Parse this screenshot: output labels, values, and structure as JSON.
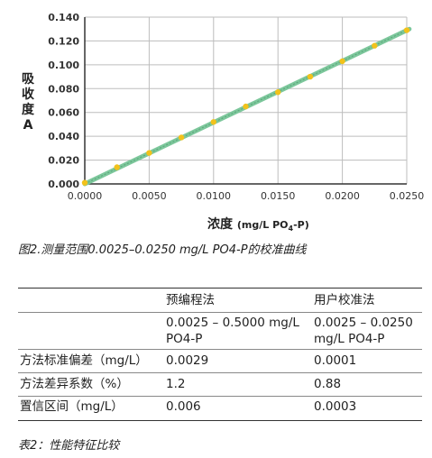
{
  "chart_data": {
    "type": "scatter",
    "title": "",
    "xlabel_main": "浓度",
    "xlabel_unit_prefix": "(mg/L PO",
    "xlabel_unit_sub": "4",
    "xlabel_unit_suffix": "-P)",
    "ylabel": "吸收度A",
    "xlim": [
      0,
      0.025
    ],
    "ylim": [
      0,
      0.14
    ],
    "x_ticks": [
      "0.0000",
      "0.0050",
      "0.0100",
      "0.0150",
      "0.0200",
      "0.0250"
    ],
    "y_ticks": [
      "0.000",
      "0.020",
      "0.040",
      "0.060",
      "0.080",
      "0.100",
      "0.120",
      "0.140"
    ],
    "x_tick_values": [
      0,
      0.005,
      0.01,
      0.015,
      0.02,
      0.025
    ],
    "y_tick_values": [
      0,
      0.02,
      0.04,
      0.06,
      0.08,
      0.1,
      0.12,
      0.14
    ],
    "grid": true,
    "series": [
      {
        "x": [
          0.0,
          0.0025,
          0.005,
          0.0075,
          0.01,
          0.0125,
          0.015,
          0.0175,
          0.02,
          0.0225,
          0.025
        ],
        "y": [
          0.001,
          0.014,
          0.026,
          0.039,
          0.052,
          0.065,
          0.077,
          0.09,
          0.103,
          0.116,
          0.129
        ],
        "color": "#f2c21b"
      }
    ],
    "fit_line": {
      "x": [
        0.0,
        0.0252
      ],
      "y": [
        0.0,
        0.13
      ],
      "color": "#7cc79b"
    },
    "colors": {
      "axis": "#333333",
      "grid": "#bdbdbd"
    }
  },
  "figure_caption": "图2.测量范围0.0025–0.0250 mg/L PO4-P的校准曲线",
  "table": {
    "headers": [
      "",
      "预编程法",
      "用户校准法"
    ],
    "rows": [
      [
        "",
        "0.0025 – 0.5000 mg/L PO4-P",
        "0.0025 – 0.0250 mg/L PO4-P"
      ],
      [
        "方法标准偏差（mg/L）",
        "0.0029",
        "0.0001"
      ],
      [
        "方法差异系数（%）",
        "1.2",
        "0.88"
      ],
      [
        "置信区间（mg/L）",
        "0.006",
        "0.0003"
      ]
    ],
    "caption": "表2：性能特征比较"
  }
}
